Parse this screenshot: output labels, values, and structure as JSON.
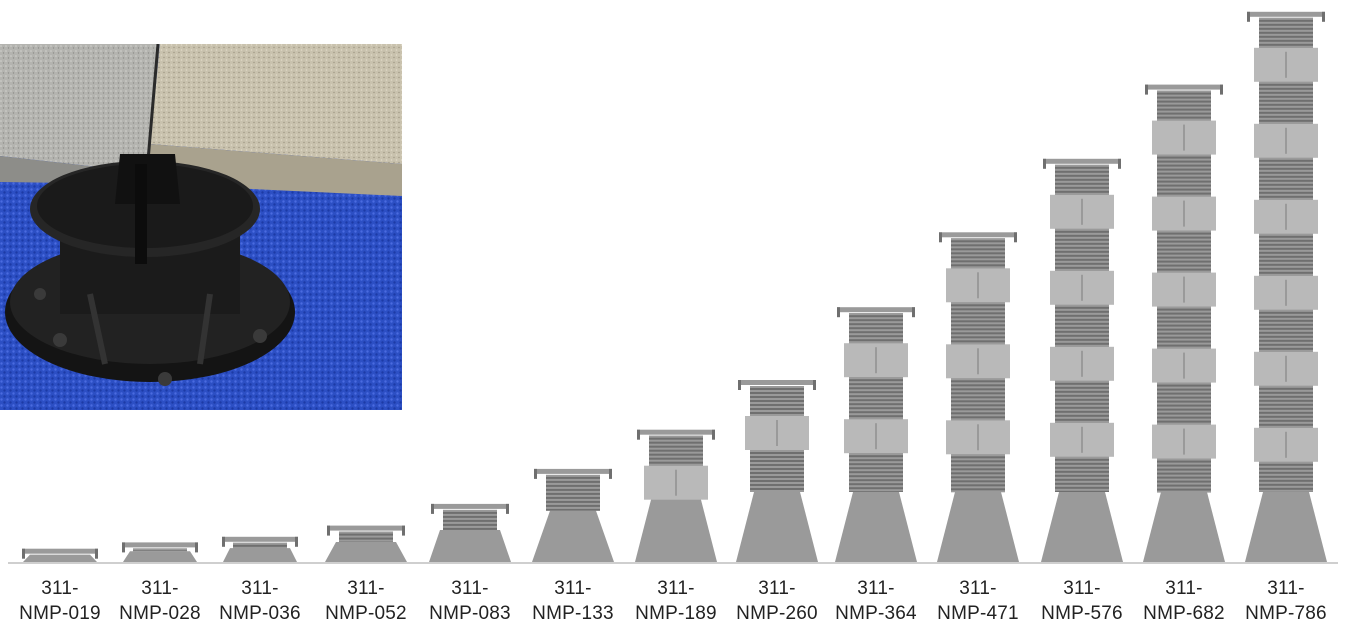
{
  "products": [
    {
      "line1": "311-",
      "line2": "NMP-019",
      "height": 0.019
    },
    {
      "line1": "311-",
      "line2": "NMP-028",
      "height": 0.028
    },
    {
      "line1": "311-",
      "line2": "NMP-036",
      "height": 0.036
    },
    {
      "line1": "311-",
      "line2": "NMP-052",
      "height": 0.052
    },
    {
      "line1": "311-",
      "line2": "NMP-083",
      "height": 0.083
    },
    {
      "line1": "311-",
      "line2": "NMP-133",
      "height": 0.133
    },
    {
      "line1": "311-",
      "line2": "NMP-189",
      "height": 0.189
    },
    {
      "line1": "311-",
      "line2": "NMP-260",
      "height": 0.26
    },
    {
      "line1": "311-",
      "line2": "NMP-364",
      "height": 0.364
    },
    {
      "line1": "311-",
      "line2": "NMP-471",
      "height": 0.471
    },
    {
      "line1": "311-",
      "line2": "NMP-576",
      "height": 0.576
    },
    {
      "line1": "311-",
      "line2": "NMP-682",
      "height": 0.682
    },
    {
      "line1": "311-",
      "line2": "NMP-786",
      "height": 0.786
    }
  ],
  "colors": {
    "pedestal_light": "#b9b9b9",
    "pedestal_mid": "#9a9a9a",
    "pedestal_dark": "#6f6f6f",
    "carpet": "#2c4fc4",
    "tile_left": "#b8b8b4",
    "tile_right": "#c9c2ae",
    "pedestal_black": "#141414"
  }
}
